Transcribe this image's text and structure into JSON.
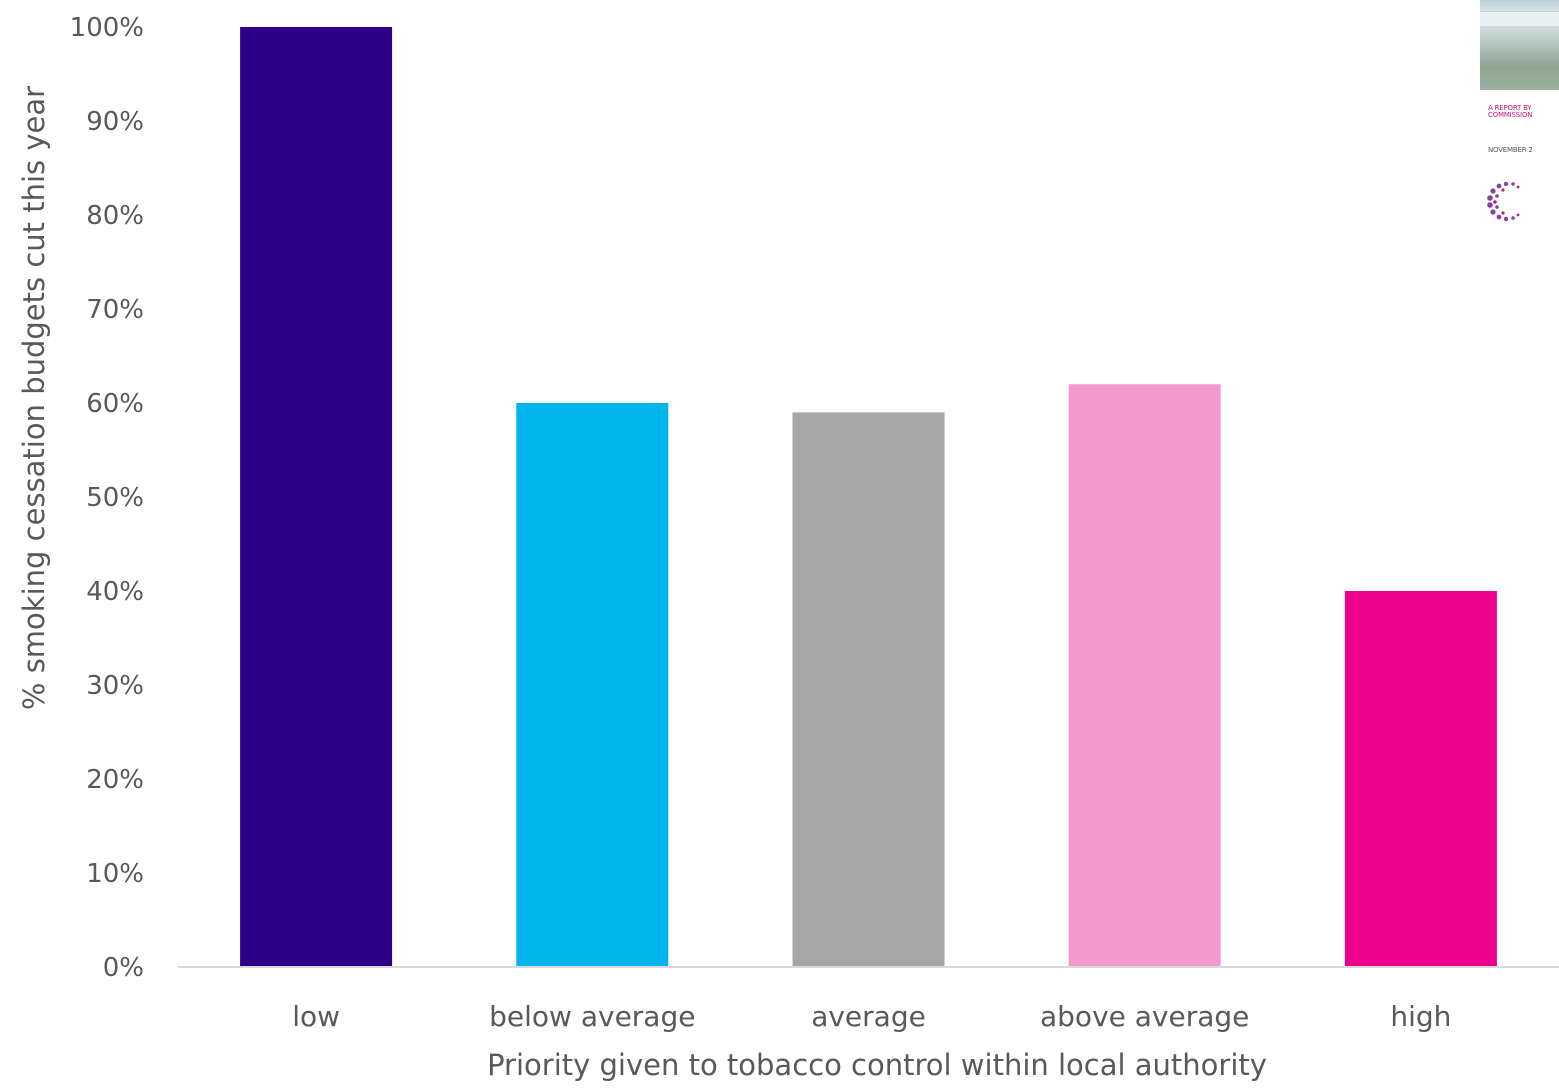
{
  "chart_data": {
    "type": "bar",
    "categories": [
      "low",
      "below average",
      "average",
      "above average",
      "high"
    ],
    "values": [
      100,
      60,
      59,
      62,
      40
    ],
    "colors": [
      "#2E0087",
      "#00B4EC",
      "#A6A6A6",
      "#F499CF",
      "#EC008C"
    ],
    "title": "",
    "xlabel": "Priority given to tobacco control within local authority",
    "ylabel": "% smoking cessation budgets cut this year",
    "ylim": [
      0,
      100
    ],
    "yticks": [
      "0%",
      "10%",
      "20%",
      "30%",
      "40%",
      "50%",
      "60%",
      "70%",
      "80%",
      "90%",
      "100%"
    ],
    "grid": false,
    "legend": "none"
  },
  "report_thumbnail": {
    "line1": "A REPORT BY",
    "line2": "COMMISSION",
    "line3": "NOVEMBER 2",
    "accent_color": "#C2187E"
  }
}
